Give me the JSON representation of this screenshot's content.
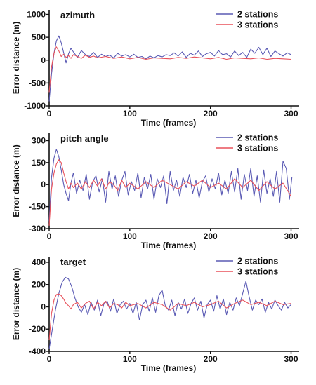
{
  "chart_data": [
    {
      "type": "line",
      "title": "azimuth",
      "xlabel": "Time (frames)",
      "ylabel": "Error distance (m)",
      "xlim": [
        0,
        310
      ],
      "ylim": [
        -1000,
        1100
      ],
      "xticks": [
        0,
        100,
        200,
        300
      ],
      "yticks": [
        -1000,
        -500,
        0,
        500,
        1000
      ],
      "legend": "top-right",
      "series": [
        {
          "name": "2 stations",
          "color": "#5a5ab4",
          "x": [
            0,
            3,
            6,
            9,
            12,
            15,
            18,
            21,
            24,
            27,
            30,
            35,
            40,
            45,
            50,
            55,
            60,
            65,
            70,
            75,
            80,
            85,
            90,
            95,
            100,
            105,
            110,
            115,
            120,
            125,
            130,
            135,
            140,
            145,
            150,
            155,
            160,
            165,
            170,
            175,
            180,
            185,
            190,
            195,
            200,
            205,
            210,
            215,
            220,
            225,
            230,
            235,
            240,
            245,
            250,
            255,
            260,
            265,
            270,
            275,
            280,
            285,
            290,
            295,
            300
          ],
          "values": [
            -900,
            -300,
            150,
            420,
            530,
            380,
            160,
            -60,
            140,
            260,
            180,
            60,
            210,
            120,
            80,
            170,
            60,
            130,
            80,
            110,
            50,
            150,
            90,
            120,
            70,
            130,
            60,
            80,
            30,
            90,
            50,
            100,
            70,
            120,
            100,
            160,
            90,
            180,
            60,
            150,
            110,
            200,
            80,
            140,
            170,
            90,
            210,
            120,
            140,
            70,
            200,
            100,
            170,
            60,
            240,
            150,
            280,
            120,
            260,
            80,
            200,
            140,
            90,
            160,
            120
          ]
        },
        {
          "name": "3 stations",
          "color": "#e8505a",
          "x": [
            0,
            3,
            6,
            9,
            12,
            15,
            18,
            21,
            24,
            27,
            30,
            35,
            40,
            45,
            50,
            55,
            60,
            70,
            80,
            90,
            100,
            110,
            120,
            130,
            140,
            150,
            160,
            170,
            180,
            190,
            200,
            210,
            220,
            230,
            240,
            250,
            260,
            270,
            280,
            290,
            300
          ],
          "values": [
            -700,
            -150,
            150,
            290,
            200,
            80,
            130,
            60,
            100,
            40,
            120,
            80,
            40,
            110,
            60,
            90,
            50,
            80,
            40,
            70,
            30,
            60,
            20,
            50,
            40,
            30,
            60,
            40,
            70,
            50,
            30,
            60,
            20,
            50,
            40,
            30,
            50,
            20,
            40,
            30,
            20
          ]
        }
      ]
    },
    {
      "type": "line",
      "title": "pitch angle",
      "xlabel": "Time (frames)",
      "ylabel": "Error distance (m)",
      "xlim": [
        0,
        310
      ],
      "ylim": [
        -300,
        350
      ],
      "xticks": [
        0,
        100,
        200,
        300
      ],
      "yticks": [
        -300,
        -150,
        0,
        150,
        300
      ],
      "legend": "top-right",
      "series": [
        {
          "name": "2 stations",
          "color": "#5a5ab4",
          "x": [
            0,
            3,
            6,
            9,
            12,
            15,
            18,
            21,
            24,
            27,
            30,
            34,
            38,
            42,
            46,
            50,
            54,
            58,
            62,
            66,
            70,
            74,
            78,
            82,
            86,
            90,
            94,
            98,
            102,
            106,
            110,
            114,
            118,
            122,
            126,
            130,
            134,
            138,
            142,
            146,
            150,
            154,
            158,
            162,
            166,
            170,
            174,
            178,
            182,
            186,
            190,
            194,
            198,
            202,
            206,
            210,
            214,
            218,
            222,
            226,
            230,
            234,
            238,
            242,
            246,
            250,
            254,
            258,
            262,
            266,
            270,
            274,
            278,
            282,
            286,
            290,
            294,
            298,
            301
          ],
          "values": [
            -250,
            50,
            180,
            240,
            190,
            100,
            0,
            -60,
            -110,
            10,
            80,
            -60,
            30,
            -40,
            70,
            -100,
            20,
            60,
            -50,
            40,
            -120,
            90,
            -30,
            60,
            -80,
            30,
            90,
            -70,
            20,
            -40,
            80,
            -90,
            50,
            -30,
            70,
            -100,
            40,
            -20,
            60,
            -130,
            90,
            -40,
            30,
            -80,
            50,
            -20,
            70,
            -60,
            30,
            -90,
            20,
            60,
            -50,
            40,
            -30,
            80,
            -70,
            30,
            -60,
            90,
            -50,
            110,
            -100,
            70,
            -40,
            110,
            -80,
            60,
            -120,
            100,
            -60,
            40,
            -80,
            90,
            -120,
            160,
            110,
            -100,
            50
          ]
        },
        {
          "name": "3 stations",
          "color": "#e8505a",
          "x": [
            0,
            3,
            6,
            9,
            12,
            15,
            18,
            21,
            24,
            27,
            30,
            35,
            40,
            45,
            50,
            55,
            60,
            65,
            70,
            75,
            80,
            85,
            90,
            95,
            100,
            110,
            120,
            130,
            140,
            150,
            160,
            170,
            180,
            190,
            200,
            210,
            220,
            230,
            240,
            250,
            260,
            270,
            280,
            290,
            300
          ],
          "values": [
            -280,
            -30,
            80,
            140,
            170,
            150,
            80,
            20,
            -30,
            10,
            -20,
            10,
            -30,
            20,
            -20,
            30,
            -10,
            40,
            -30,
            20,
            0,
            -40,
            30,
            -20,
            10,
            -30,
            20,
            -20,
            30,
            0,
            -30,
            20,
            -10,
            30,
            -20,
            10,
            -30,
            40,
            -20,
            30,
            -40,
            20,
            -30,
            10,
            -80
          ]
        }
      ]
    },
    {
      "type": "line",
      "title": "target",
      "xlabel": "Time (frames)",
      "ylabel": "Error distance (m)",
      "xlim": [
        0,
        310
      ],
      "ylim": [
        -400,
        450
      ],
      "xticks": [
        0,
        100,
        200,
        300
      ],
      "yticks": [
        -400,
        -200,
        0,
        200,
        400
      ],
      "legend": "top-right",
      "series": [
        {
          "name": "2 stations",
          "color": "#5a5ab4",
          "x": [
            0,
            4,
            8,
            12,
            16,
            20,
            24,
            28,
            32,
            36,
            40,
            44,
            48,
            52,
            56,
            60,
            64,
            68,
            72,
            76,
            80,
            84,
            88,
            92,
            96,
            100,
            104,
            108,
            112,
            116,
            120,
            124,
            128,
            132,
            136,
            140,
            144,
            148,
            152,
            156,
            160,
            164,
            168,
            172,
            176,
            180,
            184,
            188,
            192,
            196,
            200,
            204,
            208,
            212,
            216,
            220,
            224,
            228,
            232,
            236,
            240,
            244,
            248,
            252,
            256,
            260,
            264,
            268,
            272,
            276,
            280,
            284,
            288,
            292,
            296,
            300
          ],
          "values": [
            -380,
            -200,
            -20,
            120,
            220,
            265,
            250,
            180,
            80,
            0,
            -50,
            20,
            -70,
            40,
            -30,
            60,
            -80,
            30,
            50,
            -40,
            70,
            -60,
            20,
            50,
            -20,
            30,
            -60,
            40,
            -120,
            20,
            60,
            -40,
            80,
            -50,
            100,
            150,
            10,
            -30,
            60,
            -80,
            40,
            -20,
            70,
            -60,
            30,
            80,
            -30,
            50,
            -100,
            20,
            60,
            -40,
            100,
            -20,
            70,
            -70,
            40,
            -30,
            80,
            10,
            120,
            230,
            90,
            -30,
            60,
            20,
            70,
            -50,
            40,
            -20,
            60,
            10,
            -30,
            40,
            -10,
            20
          ]
        },
        {
          "name": "3 stations",
          "color": "#e8505a",
          "x": [
            0,
            3,
            6,
            9,
            12,
            15,
            18,
            21,
            24,
            27,
            30,
            35,
            40,
            45,
            50,
            55,
            60,
            65,
            70,
            75,
            80,
            85,
            90,
            95,
            100,
            110,
            120,
            130,
            140,
            150,
            160,
            170,
            180,
            190,
            200,
            210,
            220,
            230,
            240,
            250,
            260,
            270,
            280,
            290,
            300
          ],
          "values": [
            -300,
            -60,
            60,
            110,
            115,
            100,
            70,
            30,
            10,
            -20,
            20,
            40,
            -10,
            30,
            50,
            -20,
            40,
            10,
            50,
            -10,
            30,
            20,
            -10,
            40,
            10,
            30,
            -10,
            40,
            20,
            -30,
            30,
            10,
            40,
            0,
            20,
            50,
            -10,
            30,
            60,
            20,
            40,
            10,
            50,
            20,
            30
          ]
        }
      ]
    }
  ]
}
